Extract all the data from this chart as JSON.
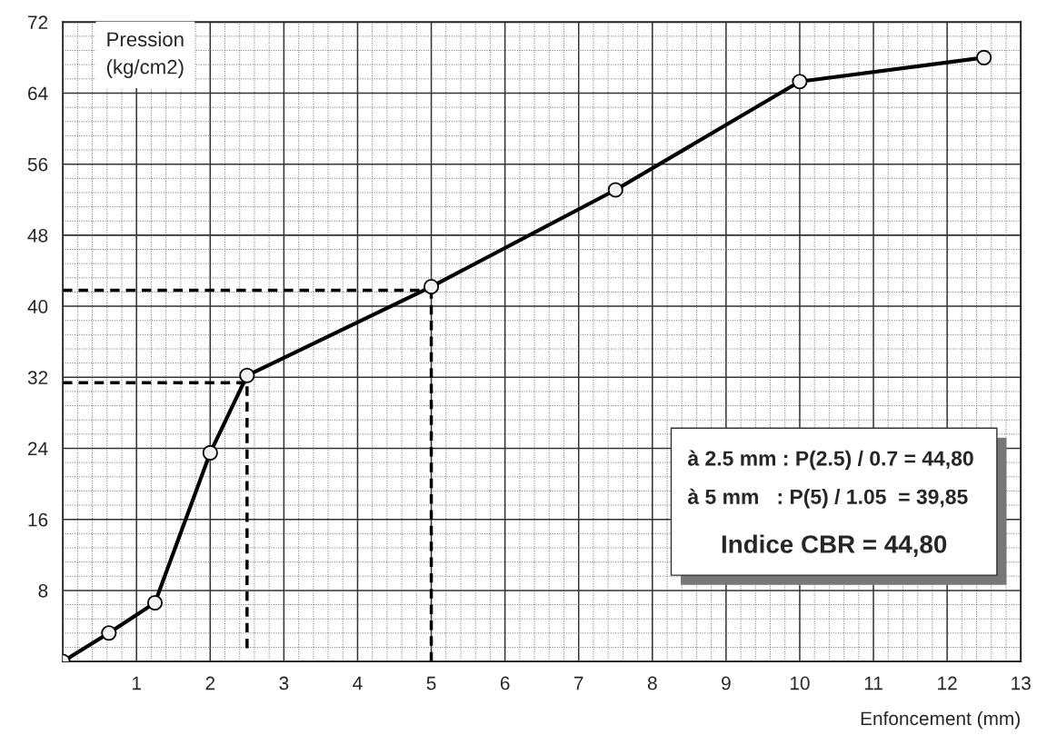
{
  "chart_data": {
    "type": "line",
    "xlabel": "Enfoncement (mm)",
    "ylabel": "Pression\n(kg/cm2)",
    "xlim": [
      0,
      13
    ],
    "ylim": [
      0,
      72
    ],
    "xticks": [
      {
        "value": 0,
        "label": null
      },
      1,
      2,
      3,
      4,
      5,
      6,
      7,
      8,
      9,
      10,
      11,
      12,
      13
    ],
    "yticks": [
      {
        "value": 0,
        "label": null
      },
      8,
      16,
      24,
      32,
      40,
      48,
      56,
      64,
      72
    ],
    "grid": true,
    "series": [
      {
        "color": "#000000",
        "marker": "circle",
        "line_style": "solid",
        "x": [
          0,
          0.625,
          1.25,
          2,
          2.5,
          5,
          7.5,
          10,
          12.5
        ],
        "values": [
          0,
          3.2,
          6.6,
          23.5,
          32.2,
          42.2,
          53.1,
          65.3,
          68.0
        ]
      },
      {
        "type": "line",
        "color": "#000000",
        "marker": "none",
        "line_style": "dashed",
        "x": [
          0,
          2.5
        ],
        "values": [
          31.4,
          31.4
        ]
      },
      {
        "type": "line",
        "color": "#000000",
        "marker": "none",
        "line_style": "dashed",
        "x": [
          2.5,
          2.5
        ],
        "values": [
          1.5,
          31.4
        ]
      },
      {
        "type": "line",
        "color": "#000000",
        "marker": "none",
        "line_style": "dashed",
        "x": [
          0,
          5
        ],
        "values": [
          41.8,
          41.8
        ]
      },
      {
        "type": "line",
        "color": "#000000",
        "marker": "none",
        "line_style": "dashed",
        "x": [
          5,
          5
        ],
        "values": [
          0,
          41.8
        ]
      }
    ],
    "annotations": [
      "à 2.5 mm : P(2.5) / 0.7 = 44,80",
      "à 5 mm   : P(5) / 1.05  = 39,85",
      "Indice CBR = 44,80"
    ]
  }
}
